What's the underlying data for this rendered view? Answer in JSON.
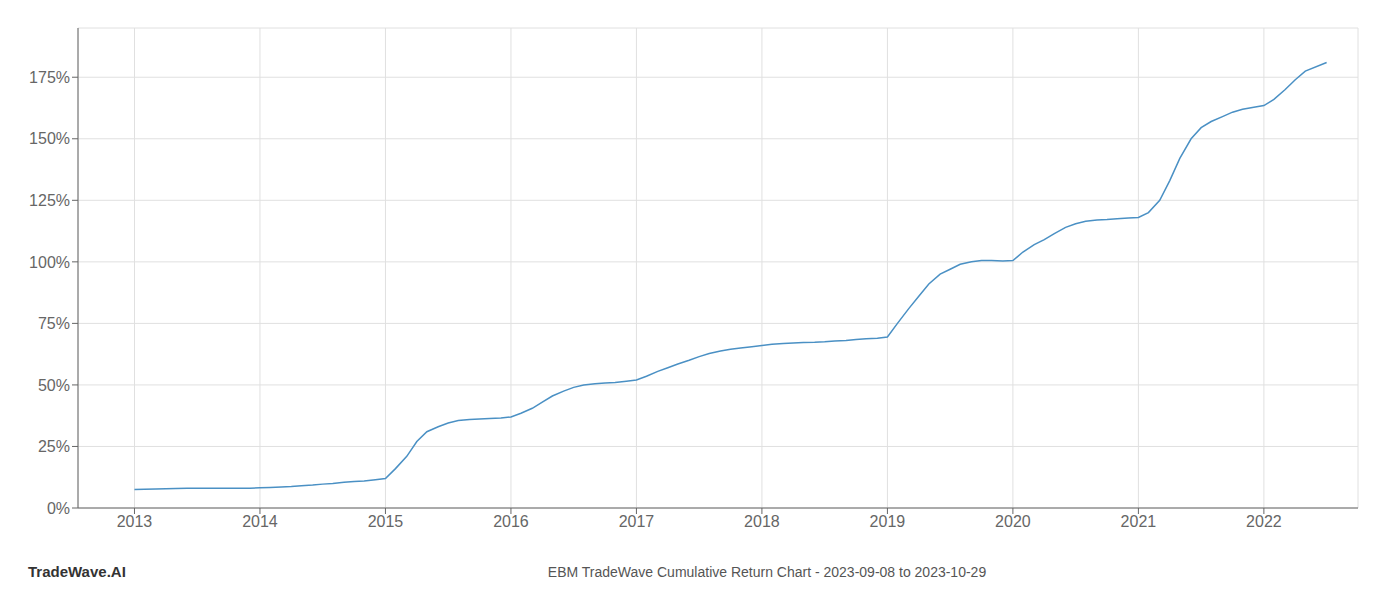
{
  "chart_data": {
    "type": "line",
    "title": "EBM TradeWave Cumulative Return Chart - 2023-09-08 to 2023-10-29",
    "annotations": [
      "TradeWave.AI"
    ],
    "color": "#4a90c4",
    "grid": true,
    "xlim": [
      2012.55,
      2022.75
    ],
    "xticks": [
      2013,
      2014,
      2015,
      2016,
      2017,
      2018,
      2019,
      2020,
      2021,
      2022
    ],
    "ylim": [
      0.0,
      1.95
    ],
    "yticks": [
      {
        "value": 0.0,
        "label": "0%"
      },
      {
        "value": 0.25,
        "label": "25%"
      },
      {
        "value": 0.5,
        "label": "50%"
      },
      {
        "value": 0.75,
        "label": "75%"
      },
      {
        "value": 1.0,
        "label": "100%"
      },
      {
        "value": 1.25,
        "label": "125%"
      },
      {
        "value": 1.5,
        "label": "150%"
      },
      {
        "value": 1.75,
        "label": "175%"
      }
    ],
    "x": [
      2013.0,
      2013.08,
      2013.17,
      2013.25,
      2013.33,
      2013.42,
      2013.5,
      2013.58,
      2013.67,
      2013.75,
      2013.83,
      2013.92,
      2014.0,
      2014.08,
      2014.17,
      2014.25,
      2014.33,
      2014.42,
      2014.5,
      2014.58,
      2014.67,
      2014.75,
      2014.83,
      2014.92,
      2015.0,
      2015.08,
      2015.17,
      2015.25,
      2015.33,
      2015.42,
      2015.5,
      2015.58,
      2015.67,
      2015.75,
      2015.83,
      2015.92,
      2016.0,
      2016.08,
      2016.17,
      2016.25,
      2016.33,
      2016.42,
      2016.5,
      2016.58,
      2016.67,
      2016.75,
      2016.83,
      2016.92,
      2017.0,
      2017.08,
      2017.17,
      2017.25,
      2017.33,
      2017.42,
      2017.5,
      2017.58,
      2017.67,
      2017.75,
      2017.83,
      2017.92,
      2018.0,
      2018.08,
      2018.17,
      2018.25,
      2018.33,
      2018.42,
      2018.5,
      2018.58,
      2018.67,
      2018.75,
      2018.83,
      2018.92,
      2019.0,
      2019.08,
      2019.17,
      2019.25,
      2019.33,
      2019.42,
      2019.5,
      2019.58,
      2019.67,
      2019.75,
      2019.83,
      2019.92,
      2020.0,
      2020.08,
      2020.17,
      2020.25,
      2020.33,
      2020.42,
      2020.5,
      2020.58,
      2020.67,
      2020.75,
      2020.83,
      2020.92,
      2021.0,
      2021.08,
      2021.17,
      2021.25,
      2021.33,
      2021.42,
      2021.5,
      2021.58,
      2021.67,
      2021.75,
      2021.83,
      2021.92,
      2022.0,
      2022.08,
      2022.17,
      2022.25,
      2022.33,
      2022.5
    ],
    "values": [
      0.075,
      0.076,
      0.077,
      0.078,
      0.079,
      0.08,
      0.08,
      0.08,
      0.08,
      0.08,
      0.08,
      0.08,
      0.082,
      0.083,
      0.085,
      0.087,
      0.09,
      0.093,
      0.097,
      0.1,
      0.105,
      0.108,
      0.11,
      0.115,
      0.12,
      0.16,
      0.21,
      0.27,
      0.31,
      0.33,
      0.345,
      0.355,
      0.36,
      0.362,
      0.364,
      0.366,
      0.37,
      0.385,
      0.405,
      0.43,
      0.455,
      0.475,
      0.49,
      0.5,
      0.505,
      0.508,
      0.51,
      0.515,
      0.52,
      0.535,
      0.555,
      0.57,
      0.585,
      0.6,
      0.615,
      0.628,
      0.638,
      0.645,
      0.65,
      0.655,
      0.66,
      0.665,
      0.668,
      0.67,
      0.672,
      0.673,
      0.675,
      0.678,
      0.68,
      0.685,
      0.688,
      0.69,
      0.695,
      0.75,
      0.81,
      0.86,
      0.91,
      0.95,
      0.97,
      0.99,
      1.0,
      1.005,
      1.005,
      1.003,
      1.005,
      1.04,
      1.07,
      1.09,
      1.115,
      1.14,
      1.155,
      1.165,
      1.17,
      1.172,
      1.175,
      1.178,
      1.18,
      1.2,
      1.25,
      1.33,
      1.42,
      1.5,
      1.545,
      1.57,
      1.59,
      1.608,
      1.62,
      1.628,
      1.635,
      1.66,
      1.7,
      1.74,
      1.775,
      1.81
    ]
  }
}
